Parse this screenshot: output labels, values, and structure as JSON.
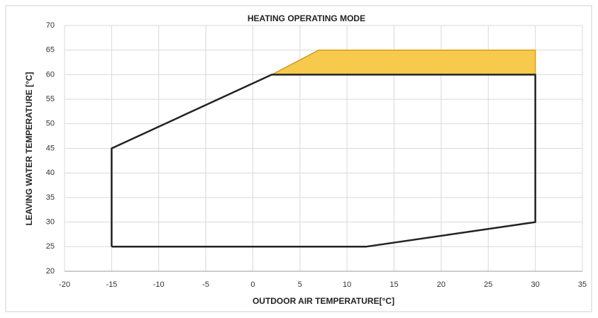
{
  "chart_data": {
    "type": "line",
    "title": "HEATING OPERATING MODE",
    "x_label": "OUTDOOR AIR TEMPERATURE[°C]",
    "y_label": "LEAVING WATER TEMPERATURE  [°C]",
    "xlim": [
      -20,
      35
    ],
    "xticks": [
      -20,
      -15,
      -10,
      -5,
      0,
      5,
      10,
      15,
      20,
      25,
      30,
      35
    ],
    "ylim": [
      20,
      70
    ],
    "yticks": [
      20,
      25,
      30,
      35,
      40,
      45,
      50,
      55,
      60,
      65,
      70
    ],
    "grid": true,
    "series": [
      {
        "color": "#d4a017",
        "fill": "#f7ca4d",
        "x": [
          2,
          7,
          30,
          30,
          2
        ],
        "values": [
          60,
          65,
          65,
          60,
          60
        ]
      },
      {
        "color": "#222222",
        "x": [
          -15,
          12,
          30,
          30,
          2,
          -15,
          -15
        ],
        "values": [
          25,
          25,
          30,
          60,
          60,
          45,
          25
        ]
      }
    ]
  }
}
